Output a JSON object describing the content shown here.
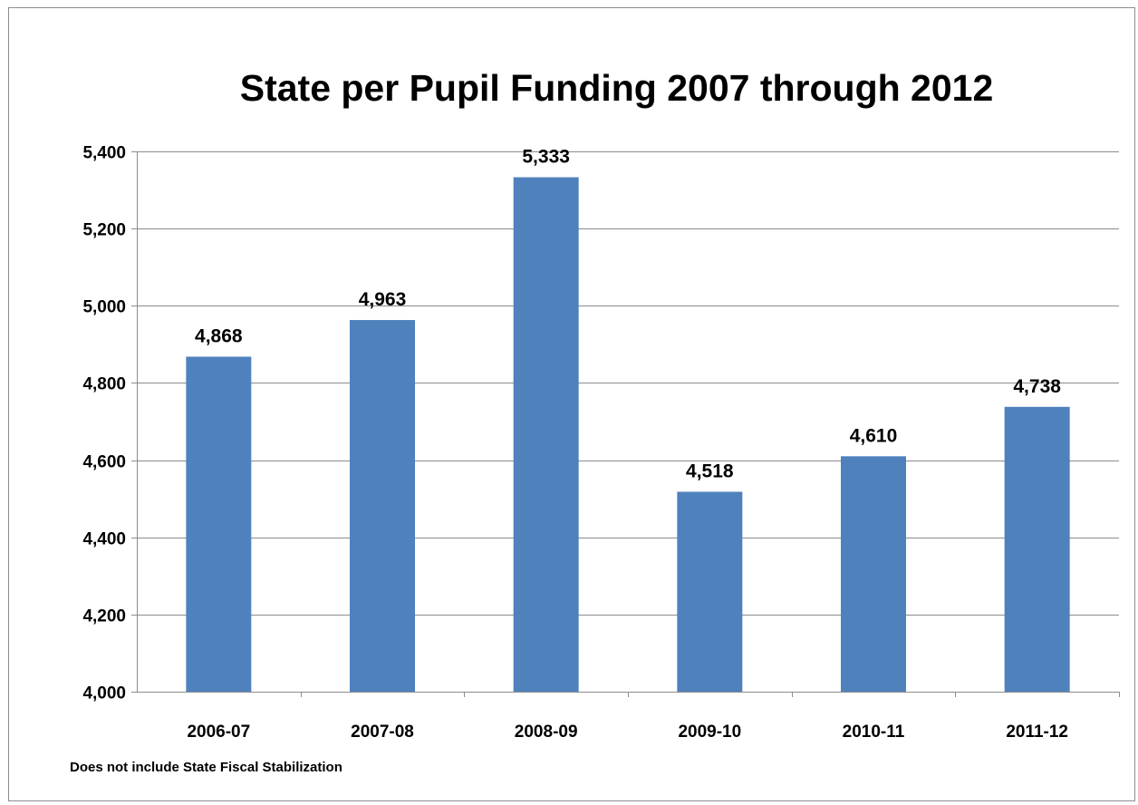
{
  "chart_data": {
    "type": "bar",
    "title": "State per Pupil Funding 2007 through 2012",
    "categories": [
      "2006-07",
      "2007-08",
      "2008-09",
      "2009-10",
      "2010-11",
      "2011-12"
    ],
    "values": [
      4868,
      4963,
      5333,
      4518,
      4610,
      4738
    ],
    "data_labels": [
      "4,868",
      "4,963",
      "5,333",
      "4,518",
      "4,610",
      "4,738"
    ],
    "ylim": [
      4000,
      5400
    ],
    "yticks": [
      4000,
      4200,
      4400,
      4600,
      4800,
      5000,
      5200,
      5400
    ],
    "ytick_labels": [
      "4,000",
      "4,200",
      "4,400",
      "4,600",
      "4,800",
      "5,000",
      "5,200",
      "5,400"
    ],
    "xlabel": "",
    "ylabel": "",
    "grid": true,
    "legend": "none",
    "bar_color": "#4f81bd",
    "gridline_color": "#8c8c8c"
  },
  "footnote": "Does not include State Fiscal Stabilization"
}
